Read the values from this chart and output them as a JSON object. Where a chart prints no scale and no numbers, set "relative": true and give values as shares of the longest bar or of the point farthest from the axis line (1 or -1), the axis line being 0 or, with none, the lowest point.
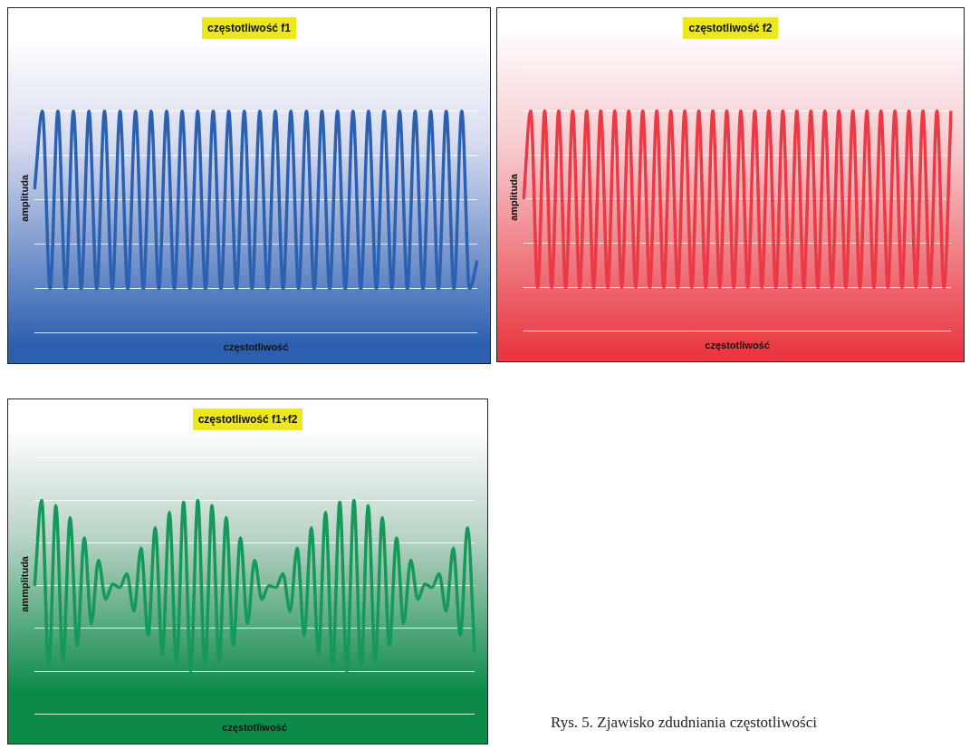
{
  "chart_data": [
    {
      "type": "line",
      "title": "częstotliwość f1",
      "xlabel": "częstotliwość",
      "ylabel": "amplituda",
      "relative": true,
      "grid": "y",
      "marker": "none",
      "categories": [
        null,
        null,
        null,
        null,
        null,
        null,
        null,
        null,
        null,
        null,
        null,
        null,
        null,
        null,
        null,
        null,
        null,
        null,
        null,
        null,
        null,
        null,
        null,
        null,
        null,
        null,
        null,
        null,
        null,
        null,
        null,
        null,
        null,
        null,
        null,
        null,
        null,
        null,
        null,
        null,
        null,
        null,
        null,
        null,
        null,
        null,
        null,
        null,
        null,
        null,
        null,
        null,
        null,
        null,
        null,
        null,
        null,
        null
      ],
      "series": [
        {
          "color": "#2c60b0",
          "values": [
            0.56,
            1,
            0,
            1,
            0,
            1,
            0,
            1,
            0,
            1,
            0,
            1,
            0,
            1,
            0,
            1,
            0,
            1,
            0,
            1,
            0,
            1,
            0,
            1,
            0,
            1,
            0,
            1,
            0,
            1,
            0,
            1,
            0,
            1,
            0,
            1,
            0,
            1,
            0,
            1,
            0,
            1,
            0,
            1,
            0,
            1,
            0,
            1,
            0,
            1,
            0,
            1,
            0,
            1,
            0,
            1,
            0,
            0.16
          ]
        }
      ]
    },
    {
      "type": "line",
      "title": "częstotliwość f2",
      "xlabel": "częstotliwość",
      "ylabel": "amplituda",
      "relative": true,
      "grid": "y",
      "marker": "none",
      "categories": [
        null,
        null,
        null,
        null,
        null,
        null,
        null,
        null,
        null,
        null,
        null,
        null,
        null,
        null,
        null,
        null,
        null,
        null,
        null,
        null,
        null,
        null,
        null,
        null,
        null,
        null,
        null,
        null,
        null,
        null,
        null,
        null,
        null,
        null,
        null,
        null,
        null,
        null,
        null,
        null,
        null,
        null,
        null,
        null,
        null,
        null,
        null,
        null,
        null,
        null,
        null,
        null,
        null,
        null,
        null,
        null,
        null,
        null,
        null,
        null,
        null,
        null
      ],
      "series": [
        {
          "color": "#e93a46",
          "values": [
            0.5,
            1,
            0,
            1,
            0,
            1,
            0,
            1,
            0,
            1,
            0,
            1,
            0,
            1,
            0,
            1,
            0,
            1,
            0,
            1,
            0,
            1,
            0,
            1,
            0,
            1,
            0,
            1,
            0,
            1,
            0,
            1,
            0,
            1,
            0,
            1,
            0,
            1,
            0,
            1,
            0,
            1,
            0,
            1,
            0,
            1,
            0,
            1,
            0,
            1,
            0,
            1,
            0,
            1,
            0,
            1,
            0,
            1,
            0,
            1,
            0,
            1
          ]
        }
      ]
    },
    {
      "type": "line",
      "title": "częstotliwość f1+f2",
      "xlabel": "częstotliwość",
      "ylabel": "ammplituda",
      "relative": true,
      "grid": "y",
      "marker": "none",
      "annotations": [
        "Rys. 5. Zjawisko zdudniania częstotliwości"
      ],
      "categories": [
        null,
        null,
        null,
        null,
        null,
        null,
        null,
        null,
        null,
        null,
        null,
        null,
        null,
        null,
        null,
        null,
        null,
        null,
        null,
        null,
        null,
        null,
        null,
        null,
        null,
        null,
        null,
        null,
        null,
        null,
        null,
        null,
        null,
        null,
        null,
        null,
        null,
        null,
        null,
        null,
        null,
        null,
        null,
        null,
        null,
        null,
        null,
        null,
        null,
        null,
        null,
        null,
        null,
        null,
        null,
        null,
        null,
        null,
        null,
        null,
        null,
        null,
        null
      ],
      "series": [
        {
          "color": "#15985a",
          "values": [
            0.5,
            1,
            0.01,
            0.97,
            0.06,
            0.9,
            0.15,
            0.78,
            0.28,
            0.65,
            0.42,
            0.51,
            0.49,
            0.57,
            0.35,
            0.72,
            0.21,
            0.84,
            0.1,
            0.93,
            0.03,
            0.99,
            0,
            1,
            0.01,
            0.97,
            0.06,
            0.9,
            0.15,
            0.78,
            0.28,
            0.65,
            0.42,
            0.5,
            0.49,
            0.57,
            0.35,
            0.72,
            0.21,
            0.84,
            0.1,
            0.93,
            0.03,
            0.99,
            0,
            1,
            0.01,
            0.97,
            0.06,
            0.9,
            0.15,
            0.78,
            0.28,
            0.65,
            0.42,
            0.51,
            0.49,
            0.57,
            0.35,
            0.72,
            0.21,
            0.84,
            0.11
          ]
        }
      ]
    }
  ]
}
